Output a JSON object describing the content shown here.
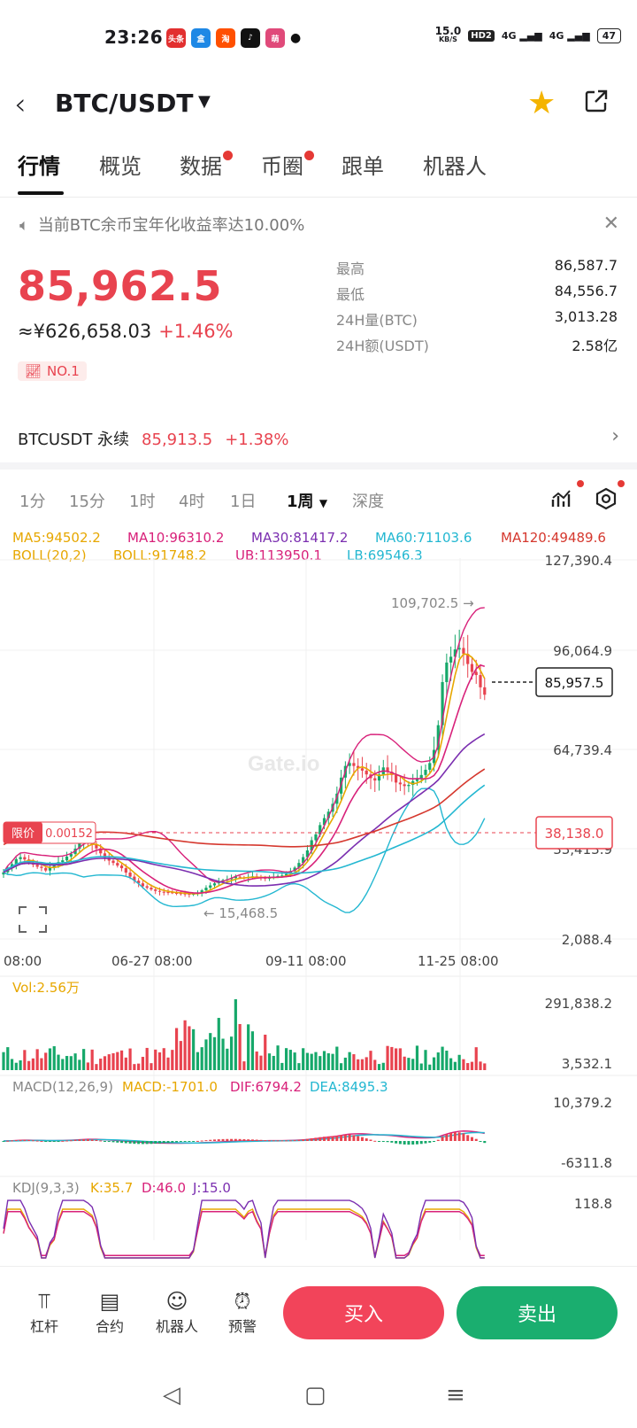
{
  "status_bar": {
    "time": "23:26",
    "apps": [
      {
        "label": "头条",
        "color": "#e23030"
      },
      {
        "label": "盒",
        "color": "#1e88e5"
      },
      {
        "label": "淘",
        "color": "#ff5000"
      },
      {
        "label": "♪",
        "color": "#111111"
      },
      {
        "label": "萌",
        "color": "#e04a7a"
      }
    ],
    "net_speed": "15.0",
    "net_unit": "KB/S",
    "hd": "HD2",
    "sig1": "4G",
    "sig2": "4G",
    "battery": "47"
  },
  "header": {
    "pair": "BTC/USDT",
    "dropdown_icon": "triangle-down-icon"
  },
  "tabs": [
    {
      "label": "行情",
      "active": true,
      "dot": false
    },
    {
      "label": "概览",
      "active": false,
      "dot": false
    },
    {
      "label": "数据",
      "active": false,
      "dot": true
    },
    {
      "label": "币圈",
      "active": false,
      "dot": true
    },
    {
      "label": "跟单",
      "active": false,
      "dot": false
    },
    {
      "label": "机器人",
      "active": false,
      "dot": false
    }
  ],
  "notice": {
    "text": "当前BTC余币宝年化收益率达10.00%"
  },
  "price": {
    "last": "85,962.5",
    "cny": "≈¥626,658.03",
    "change": "+1.46%",
    "rank": "NO.1"
  },
  "stats": [
    {
      "label": "最高",
      "value": "86,587.7"
    },
    {
      "label": "最低",
      "value": "84,556.7"
    },
    {
      "label": "24H量(BTC)",
      "value": "3,013.28"
    },
    {
      "label": "24H额(USDT)",
      "value": "2.58亿"
    }
  ],
  "perp": {
    "name": "BTCUSDT 永续",
    "price": "85,913.5",
    "change": "+1.38%"
  },
  "intervals": [
    "1分",
    "15分",
    "1时",
    "4时",
    "1日",
    "1周",
    "深度"
  ],
  "active_interval": "1周",
  "indicators": {
    "ma": [
      {
        "label": "MA5:94502.2",
        "color": "#e7a700"
      },
      {
        "label": "MA10:96310.2",
        "color": "#d8217a"
      },
      {
        "label": "MA30:81417.2",
        "color": "#7b2fb0"
      },
      {
        "label": "MA60:71103.6",
        "color": "#23b7d1"
      },
      {
        "label": "MA120:49489.6",
        "color": "#d5382e"
      }
    ],
    "boll": [
      {
        "label": "BOLL(20,2)",
        "color": "#e7a700"
      },
      {
        "label": "BOLL:91748.2",
        "color": "#e7a700"
      },
      {
        "label": "UB:113950.1",
        "color": "#d8217a"
      },
      {
        "label": "LB:69546.3",
        "color": "#23b7d1"
      }
    ]
  },
  "chart_data": {
    "type": "candlestick",
    "y_ticks": [
      "127,390.4",
      "96,064.9",
      "64,739.4",
      "33,413.9",
      "2,088.4"
    ],
    "ylim": [
      2088.4,
      127390.4
    ],
    "x_ticks": [
      "08:00",
      "06-27 08:00",
      "09-11 08:00",
      "11-25 08:00"
    ],
    "current_price_label": "85,957.5",
    "limit_label": "限价",
    "limit_value": "0.00152",
    "limit_price_label": "38,138.0",
    "high_marker": "109,702.5 →",
    "low_marker": "← 15,468.5",
    "watermark": "Gate.io",
    "close": [
      25000,
      26500,
      27800,
      29500,
      30200,
      29400,
      28300,
      27600,
      26900,
      26500,
      25600,
      26800,
      27300,
      28500,
      29100,
      30400,
      31300,
      33100,
      34800,
      35500,
      35000,
      34600,
      33200,
      31500,
      30000,
      29000,
      28200,
      27300,
      26400,
      24900,
      23500,
      22100,
      21200,
      20200,
      19700,
      19100,
      18600,
      18300,
      18200,
      18100,
      17900,
      17800,
      17700,
      17600,
      17500,
      17600,
      17900,
      18800,
      19700,
      20500,
      21200,
      21700,
      22300,
      22600,
      23000,
      23500,
      23200,
      23000,
      23400,
      23600,
      23300,
      23200,
      22800,
      23200,
      23500,
      23700,
      23900,
      24400,
      25400,
      26600,
      28200,
      30200,
      32500,
      36000,
      38000,
      41200,
      43600,
      45800,
      48500,
      52000,
      57500,
      61500,
      62500,
      61500,
      60700,
      59900,
      58600,
      57300,
      56500,
      58600,
      61000,
      59500,
      58400,
      55800,
      55200,
      54600,
      55000,
      56300,
      57200,
      58400,
      60200,
      62500,
      67000,
      75500,
      90300,
      97000,
      99000,
      101500,
      102000,
      100000,
      96500,
      93800,
      92700,
      88500,
      85962
    ],
    "ma5_last": 94502.2,
    "ma10_last": 96310.2,
    "ma30_last": 81417.2,
    "ma60_last": 71103.6,
    "ma120_last": 49489.6,
    "boll_mid_last": 91748.2,
    "boll_ub_last": 113950.1,
    "boll_lb_last": 69546.3,
    "volume": {
      "label": "Vol:2.56万",
      "ticks": [
        "291,838.2",
        "3,532.1"
      ]
    },
    "macd": {
      "label": "MACD(12,26,9)",
      "macd": "MACD:-1701.0",
      "dif": "DIF:6794.2",
      "dea": "DEA:8495.3",
      "ticks": [
        "10,379.2",
        "-6311.8"
      ]
    },
    "kdj": {
      "label": "KDJ(9,3,3)",
      "k": "K:35.7",
      "d": "D:46.0",
      "j": "J:15.0",
      "ticks": [
        "118.8"
      ]
    }
  },
  "bottom_bar": {
    "items": [
      {
        "label": "杠杆",
        "icon": "leverage-icon"
      },
      {
        "label": "合约",
        "icon": "contract-icon"
      },
      {
        "label": "机器人",
        "icon": "robot-icon"
      },
      {
        "label": "预警",
        "icon": "alarm-icon"
      }
    ],
    "buy": "买入",
    "sell": "卖出"
  }
}
